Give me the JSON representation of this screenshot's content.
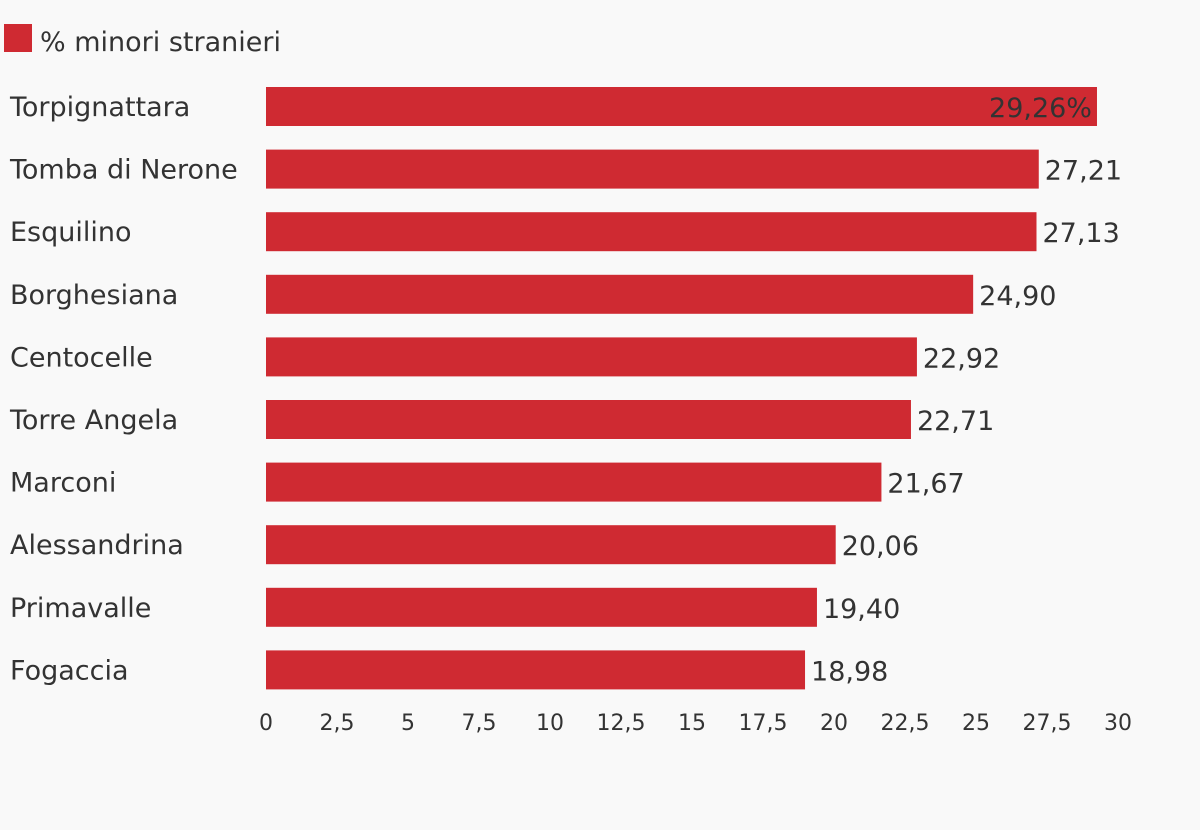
{
  "chart_data": {
    "type": "bar",
    "orientation": "horizontal",
    "categories": [
      "Torpignattara",
      "Tomba di Nerone",
      "Esquilino",
      "Borghesiana",
      "Centocelle",
      "Torre Angela",
      "Marconi",
      "Alessandrina",
      "Primavalle",
      "Fogaccia"
    ],
    "series": [
      {
        "name": "% minori stranieri",
        "values": [
          29.26,
          27.21,
          27.13,
          24.9,
          22.92,
          22.71,
          21.67,
          20.06,
          19.4,
          18.98
        ],
        "value_labels": [
          "29,26%",
          "27,21",
          "27,13",
          "24,90",
          "22,92",
          "22,71",
          "21,67",
          "20,06",
          "19,40",
          "18,98"
        ],
        "color": "#cf2a32"
      }
    ],
    "xlim": [
      0,
      30
    ],
    "x_ticks": [
      0,
      2.5,
      5,
      7.5,
      10,
      12.5,
      15,
      17.5,
      20,
      22.5,
      25,
      27.5,
      30
    ],
    "x_tick_labels": [
      "0",
      "2,5",
      "5",
      "7,5",
      "10",
      "12,5",
      "15",
      "17,5",
      "20",
      "22,5",
      "25",
      "27,5",
      "30"
    ],
    "grid": false,
    "legend_position": "top-left",
    "label_color": "#333333"
  }
}
